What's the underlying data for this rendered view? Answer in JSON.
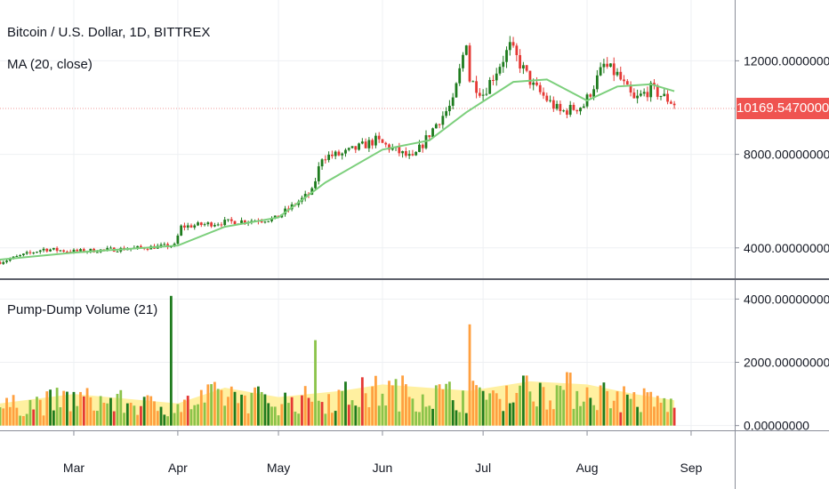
{
  "legend": {
    "symbol": "Bitcoin / U.S. Dollar, 1D, BITTREX",
    "ma": "MA (20, close)",
    "indicator": "Pump-Dump Volume (21)"
  },
  "last_price_label": "10169.54700000",
  "colors": {
    "up": "#1e7b1e",
    "down": "#e53935",
    "ma": "#7ccf7c",
    "price_line": "#ef9a9a",
    "badge": "#ef5350",
    "vol_green": "#8bc34a",
    "vol_orange": "#ffa040",
    "vol_band": "#fff0a0"
  },
  "chart_data": [
    {
      "type": "candlestick",
      "title": "Bitcoin / U.S. Dollar, 1D, BITTREX",
      "x_ticks": [
        "Mar",
        "Apr",
        "May",
        "Jun",
        "Jul",
        "Aug",
        "Sep"
      ],
      "x_tick_dates": [
        "2019-03-01",
        "2019-04-01",
        "2019-05-01",
        "2019-06-01",
        "2019-07-01",
        "2019-08-01",
        "2019-09-01"
      ],
      "x_range": [
        "2019-02-07",
        "2019-09-14"
      ],
      "y_ticks": [
        "4000.00000000",
        "8000.00000000",
        "12000.00000000"
      ],
      "y_tick_values": [
        4000,
        8000,
        12000
      ],
      "ylim": [
        2700,
        14600
      ],
      "last_price": 10169.547,
      "grid": true,
      "series": [
        {
          "name": "MA (20, close)",
          "x": [
            "2019-02-07",
            "2019-03-01",
            "2019-04-01",
            "2019-04-15",
            "2019-05-01",
            "2019-05-15",
            "2019-06-01",
            "2019-06-15",
            "2019-06-26",
            "2019-07-10",
            "2019-07-20",
            "2019-08-01",
            "2019-08-10",
            "2019-08-20",
            "2019-08-27"
          ],
          "values": [
            3500,
            3800,
            4100,
            4900,
            5300,
            6800,
            8200,
            8600,
            9800,
            11100,
            11200,
            10300,
            10900,
            11000,
            10700
          ]
        }
      ],
      "candle_path": {
        "x": [
          "2019-02-07",
          "2019-02-20",
          "2019-03-01",
          "2019-03-15",
          "2019-03-31",
          "2019-04-02",
          "2019-04-15",
          "2019-04-30",
          "2019-05-11",
          "2019-05-14",
          "2019-05-20",
          "2019-05-30",
          "2019-06-03",
          "2019-06-10",
          "2019-06-17",
          "2019-06-22",
          "2019-06-26",
          "2019-06-27",
          "2019-07-01",
          "2019-07-09",
          "2019-07-16",
          "2019-07-24",
          "2019-07-31",
          "2019-08-06",
          "2019-08-10",
          "2019-08-15",
          "2019-08-20",
          "2019-08-27"
        ],
        "close": [
          3400,
          3950,
          3850,
          3950,
          4100,
          4900,
          5100,
          5250,
          6400,
          7900,
          8000,
          8600,
          8300,
          7800,
          9300,
          10200,
          12900,
          11200,
          10600,
          12600,
          10900,
          9800,
          10100,
          11800,
          11400,
          10300,
          10800,
          10169.547
        ]
      }
    },
    {
      "type": "bar",
      "title": "Pump-Dump Volume (21)",
      "y_ticks": [
        "0.00000000",
        "2000.00000000",
        "4000.00000000"
      ],
      "y_tick_values": [
        0,
        2000,
        4000
      ],
      "ylim": [
        -150,
        4600
      ],
      "grid": true,
      "notable_spikes": [
        {
          "x": "2019-03-30",
          "value": 4100
        },
        {
          "x": "2019-06-27",
          "value": 3200
        },
        {
          "x": "2019-05-12",
          "value": 2700
        }
      ],
      "baseline_band": {
        "x": [
          "2019-02-07",
          "2019-03-01",
          "2019-04-01",
          "2019-04-15",
          "2019-05-01",
          "2019-05-20",
          "2019-06-01",
          "2019-06-27",
          "2019-07-15",
          "2019-08-01",
          "2019-08-15",
          "2019-08-27"
        ],
        "values": [
          700,
          1000,
          700,
          1200,
          900,
          1100,
          1300,
          1100,
          1400,
          1300,
          1000,
          800
        ]
      }
    }
  ]
}
